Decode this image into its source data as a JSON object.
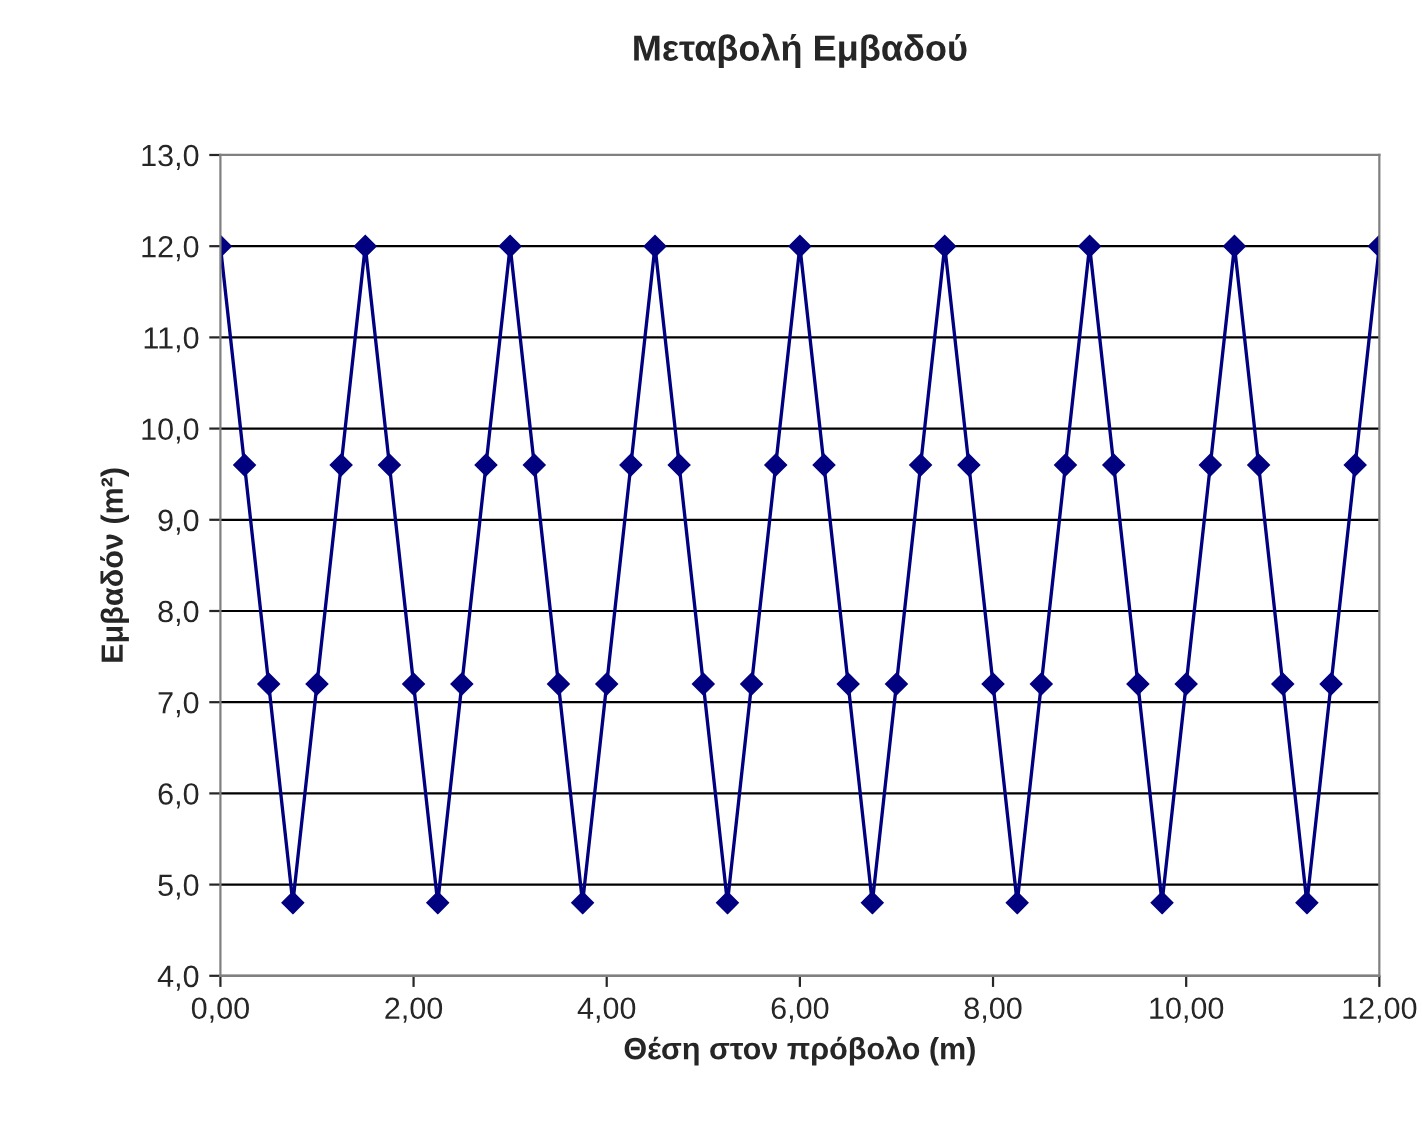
{
  "chart_data": {
    "type": "line",
    "title": "Μεταβολή Εμβαδού",
    "xlabel": "Θέση στον πρόβολο (m)",
    "ylabel": "Εμβαδόν (m²)",
    "x": [
      0,
      0.25,
      0.5,
      0.75,
      1,
      1.25,
      1.5,
      1.75,
      2,
      2.25,
      2.5,
      2.75,
      3,
      3.25,
      3.5,
      3.75,
      4,
      4.25,
      4.5,
      4.75,
      5,
      5.25,
      5.5,
      5.75,
      6,
      6.25,
      6.5,
      6.75,
      7,
      7.25,
      7.5,
      7.75,
      8,
      8.25,
      8.5,
      8.75,
      9,
      9.25,
      9.5,
      9.75,
      10,
      10.25,
      10.5,
      10.75,
      11,
      11.25,
      11.5,
      11.75,
      12
    ],
    "series": [
      {
        "color": "#000080",
        "values": [
          12,
          9.6,
          7.2,
          4.8,
          7.2,
          9.6,
          12,
          9.6,
          7.2,
          4.8,
          7.2,
          9.6,
          12,
          9.6,
          7.2,
          4.8,
          7.2,
          9.6,
          12,
          9.6,
          7.2,
          4.8,
          7.2,
          9.6,
          12,
          9.6,
          7.2,
          4.8,
          7.2,
          9.6,
          12,
          9.6,
          7.2,
          4.8,
          7.2,
          9.6,
          12,
          9.6,
          7.2,
          4.8,
          7.2,
          9.6,
          12,
          9.6,
          7.2,
          4.8,
          7.2,
          9.6,
          12
        ]
      }
    ],
    "xlim": [
      0,
      12
    ],
    "xticks": [
      {
        "value": 0,
        "label": "0,00"
      },
      {
        "value": 2,
        "label": "2,00"
      },
      {
        "value": 4,
        "label": "4,00"
      },
      {
        "value": 6,
        "label": "6,00"
      },
      {
        "value": 8,
        "label": "8,00"
      },
      {
        "value": 10,
        "label": "10,00"
      },
      {
        "value": 12,
        "label": "12,00"
      }
    ],
    "ylim": [
      4,
      13
    ],
    "yticks": [
      {
        "value": 4,
        "label": "4,0"
      },
      {
        "value": 5,
        "label": "5,0"
      },
      {
        "value": 6,
        "label": "6,0"
      },
      {
        "value": 7,
        "label": "7,0"
      },
      {
        "value": 8,
        "label": "8,0"
      },
      {
        "value": 9,
        "label": "9,0"
      },
      {
        "value": 10,
        "label": "10,0"
      },
      {
        "value": 11,
        "label": "11,0"
      },
      {
        "value": 12,
        "label": "12,0"
      },
      {
        "value": 13,
        "label": "13,0"
      }
    ],
    "grid": "y",
    "marker": "diamond",
    "line_style": "solid",
    "legend": false
  }
}
